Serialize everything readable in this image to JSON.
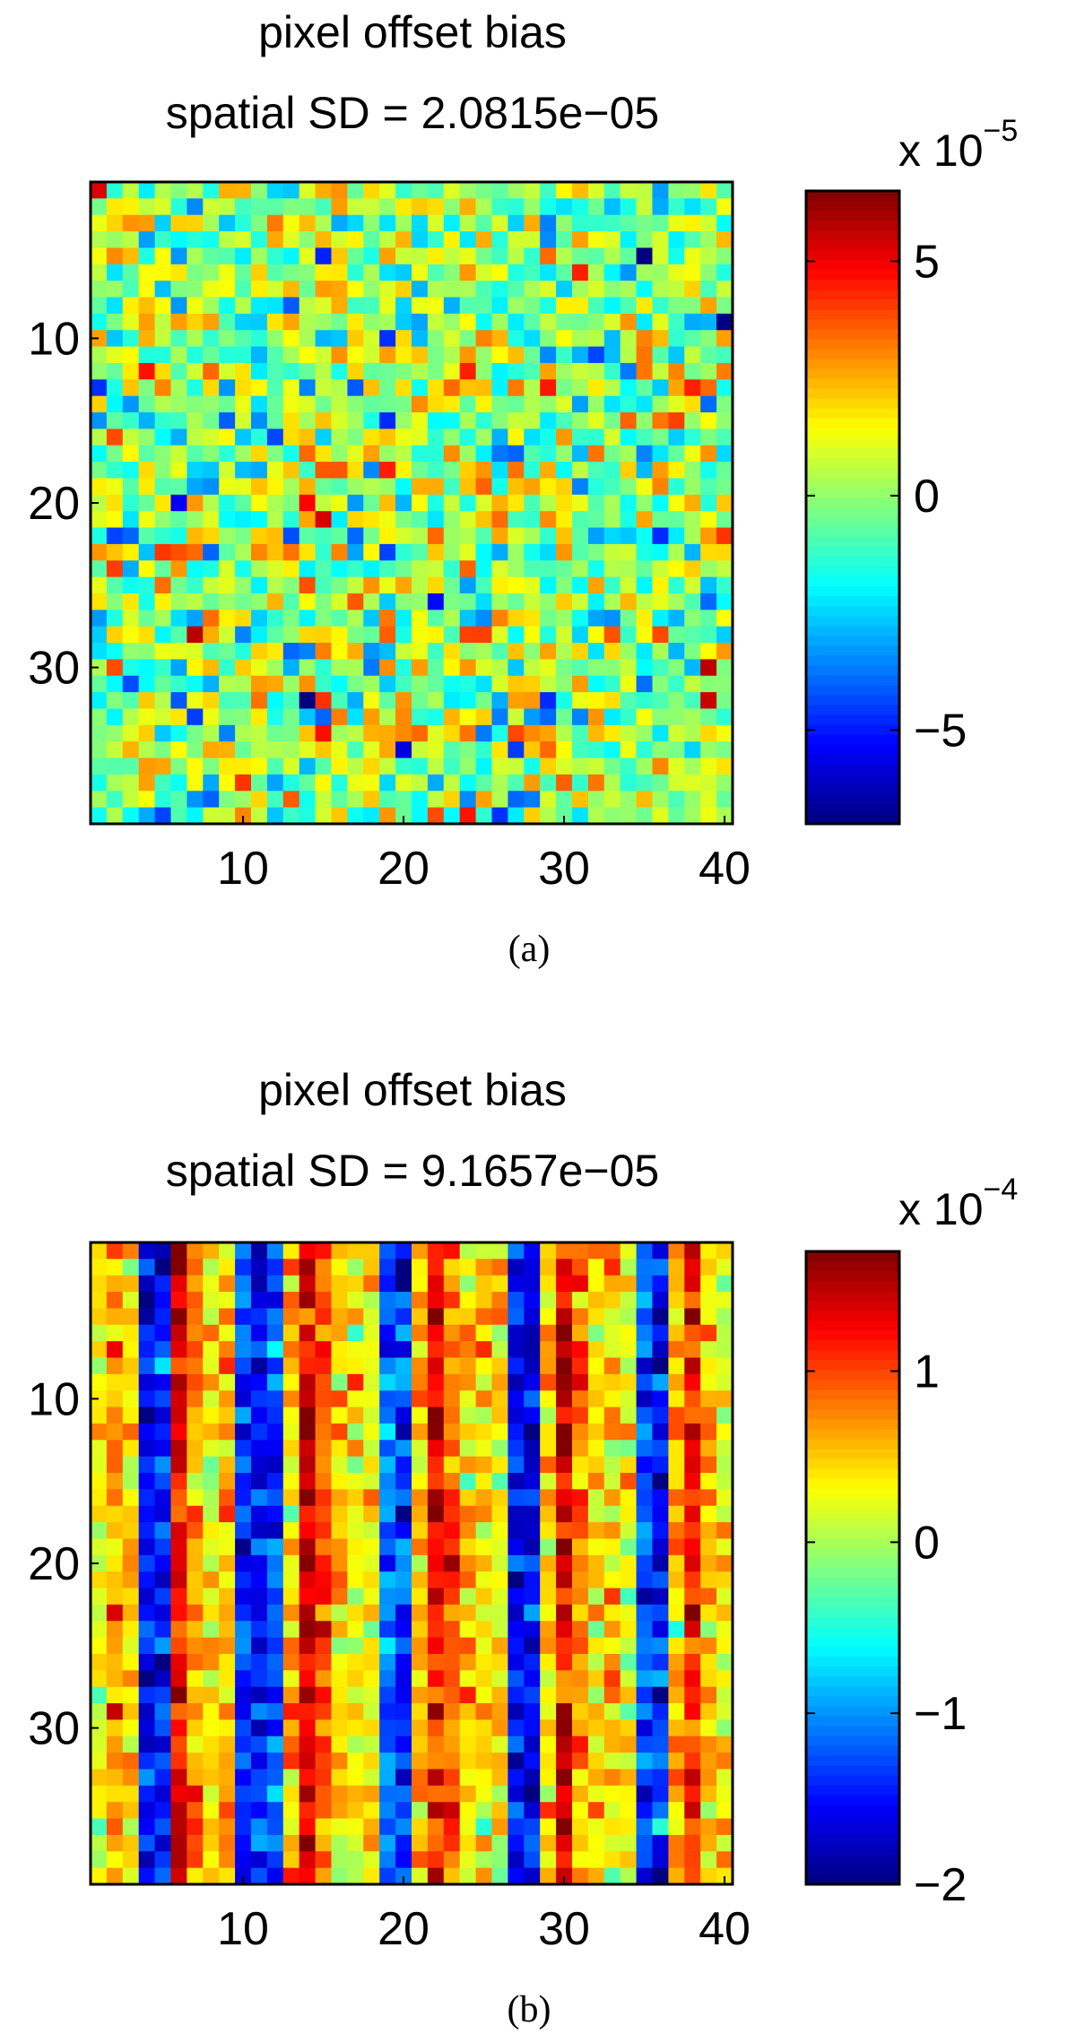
{
  "chart_data": [
    {
      "panel_label": "(a)",
      "type": "heatmap",
      "title": "pixel offset bias",
      "subtitle": "spatial SD = 2.0815e−05",
      "grid_size": [
        39,
        40
      ],
      "x_ticks": [
        10,
        20,
        30,
        40
      ],
      "y_ticks": [
        10,
        20,
        30
      ],
      "colorbar": {
        "multiplier_base": "x 10",
        "multiplier_exponent": "−5",
        "range": [
          -7,
          6.5
        ],
        "ticks": [
          5,
          0,
          -5
        ],
        "tick_labels": [
          "5",
          "0",
          "−5"
        ]
      },
      "colormap": "jet",
      "pattern": "random spatially uncorrelated noise"
    },
    {
      "panel_label": "(b)",
      "type": "heatmap",
      "title": "pixel offset bias",
      "subtitle": "spatial SD = 9.1657e−05",
      "grid_size": [
        39,
        40
      ],
      "x_ticks": [
        10,
        20,
        30,
        40
      ],
      "y_ticks": [
        10,
        20,
        30
      ],
      "colorbar": {
        "multiplier_base": "x 10",
        "multiplier_exponent": "−4",
        "range": [
          -2,
          1.7
        ],
        "ticks": [
          1,
          0,
          -1,
          -2
        ],
        "tick_labels": [
          "1",
          "0",
          "−1",
          "−2"
        ]
      },
      "colormap": "jet",
      "pattern": "column-striped structure",
      "column_means": [
        0.3,
        0.6,
        0.4,
        -1.5,
        -1.4,
        1.2,
        0.7,
        0.3,
        0.5,
        -1.4,
        -1.5,
        -1.3,
        0.5,
        1.3,
        0.9,
        0.4,
        0.3,
        0.4,
        -1.2,
        -1.4,
        0.6,
        1.3,
        0.8,
        0.5,
        0.4,
        0.3,
        -1.5,
        -1.6,
        0.4,
        1.3,
        0.7,
        0.4,
        0.5,
        0.3,
        -1.3,
        -1.5,
        0.6,
        1.2,
        0.5,
        0.3
      ]
    }
  ]
}
